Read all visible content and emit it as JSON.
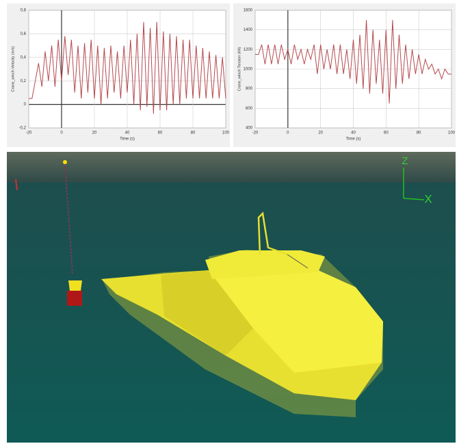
{
  "chart_data": [
    {
      "type": "line",
      "ylabel": "Crane_winch Velocity (m/s)",
      "xlabel": "Time (s)",
      "color": "#b5484c",
      "grid": true,
      "x": [
        -20,
        -18,
        -16,
        -14,
        -12,
        -10,
        -8,
        -6,
        -4,
        -2,
        0,
        2,
        4,
        6,
        8,
        10,
        12,
        14,
        16,
        18,
        20,
        22,
        24,
        26,
        28,
        30,
        32,
        34,
        36,
        38,
        40,
        42,
        44,
        46,
        48,
        50,
        52,
        54,
        56,
        58,
        60,
        62,
        64,
        66,
        68,
        70,
        72,
        74,
        76,
        78,
        80,
        82,
        84,
        86,
        88,
        90,
        92,
        94,
        96,
        98,
        100
      ],
      "values": [
        0.05,
        0.05,
        0.2,
        0.35,
        0.15,
        0.45,
        0.2,
        0.5,
        0.15,
        0.55,
        0.2,
        0.58,
        0.25,
        0.55,
        0.1,
        0.5,
        0.05,
        0.52,
        0.1,
        0.55,
        0.05,
        0.5,
        0.0,
        0.48,
        0.05,
        0.5,
        0.1,
        0.45,
        0.05,
        0.5,
        0.1,
        0.55,
        0.0,
        0.6,
        -0.05,
        0.7,
        -0.02,
        0.65,
        -0.08,
        0.7,
        -0.05,
        0.62,
        -0.05,
        0.6,
        0.0,
        0.58,
        0.0,
        0.55,
        0.05,
        0.55,
        0.05,
        0.5,
        0.05,
        0.48,
        0.05,
        0.45,
        0.05,
        0.42,
        0.05,
        0.4,
        0.05
      ],
      "xlim": [
        -20,
        100
      ],
      "xticks": [
        -20,
        0,
        20,
        40,
        60,
        80,
        100
      ],
      "ylim": [
        -0.2,
        0.8
      ],
      "yticks": [
        {
          "value": -0.2,
          "label": "-0,2"
        },
        0,
        {
          "value": 0.2,
          "label": "0,2"
        },
        {
          "value": 0.4,
          "label": "0,4"
        },
        {
          "value": 0.6,
          "label": "0,6"
        },
        {
          "value": 0.8,
          "label": "0,8"
        }
      ]
    },
    {
      "type": "line",
      "ylabel": "Crane_winch Tension (kN)",
      "xlabel": "Time (s)",
      "color": "#b5484c",
      "grid": true,
      "x": [
        -20,
        -18,
        -16,
        -14,
        -12,
        -10,
        -8,
        -6,
        -4,
        -2,
        0,
        2,
        4,
        6,
        8,
        10,
        12,
        14,
        16,
        18,
        20,
        22,
        24,
        26,
        28,
        30,
        32,
        34,
        36,
        38,
        40,
        42,
        44,
        46,
        48,
        50,
        52,
        54,
        56,
        58,
        60,
        62,
        64,
        66,
        68,
        70,
        72,
        74,
        76,
        78,
        80,
        82,
        84,
        86,
        88,
        90,
        92,
        94,
        96,
        98,
        100
      ],
      "values": [
        1150,
        1150,
        1250,
        1050,
        1250,
        1050,
        1250,
        1050,
        1250,
        1100,
        1200,
        1050,
        1250,
        1100,
        1200,
        1050,
        1200,
        1100,
        1250,
        950,
        1250,
        1000,
        1200,
        1000,
        1250,
        950,
        1250,
        950,
        1200,
        900,
        1300,
        850,
        1350,
        800,
        1500,
        750,
        1400,
        850,
        1300,
        750,
        1400,
        650,
        1500,
        800,
        1350,
        850,
        1250,
        900,
        1200,
        950,
        1150,
        950,
        1100,
        1000,
        1050,
        950,
        1000,
        900,
        1000,
        950,
        950
      ],
      "xlim": [
        -20,
        100
      ],
      "xticks": [
        -20,
        0,
        20,
        40,
        60,
        80,
        100
      ],
      "ylim": [
        400,
        1600
      ],
      "yticks": [
        400,
        600,
        800,
        1000,
        1200,
        1400,
        1600
      ]
    }
  ],
  "scene": {
    "axis_labels": [
      "Z",
      "X"
    ]
  }
}
